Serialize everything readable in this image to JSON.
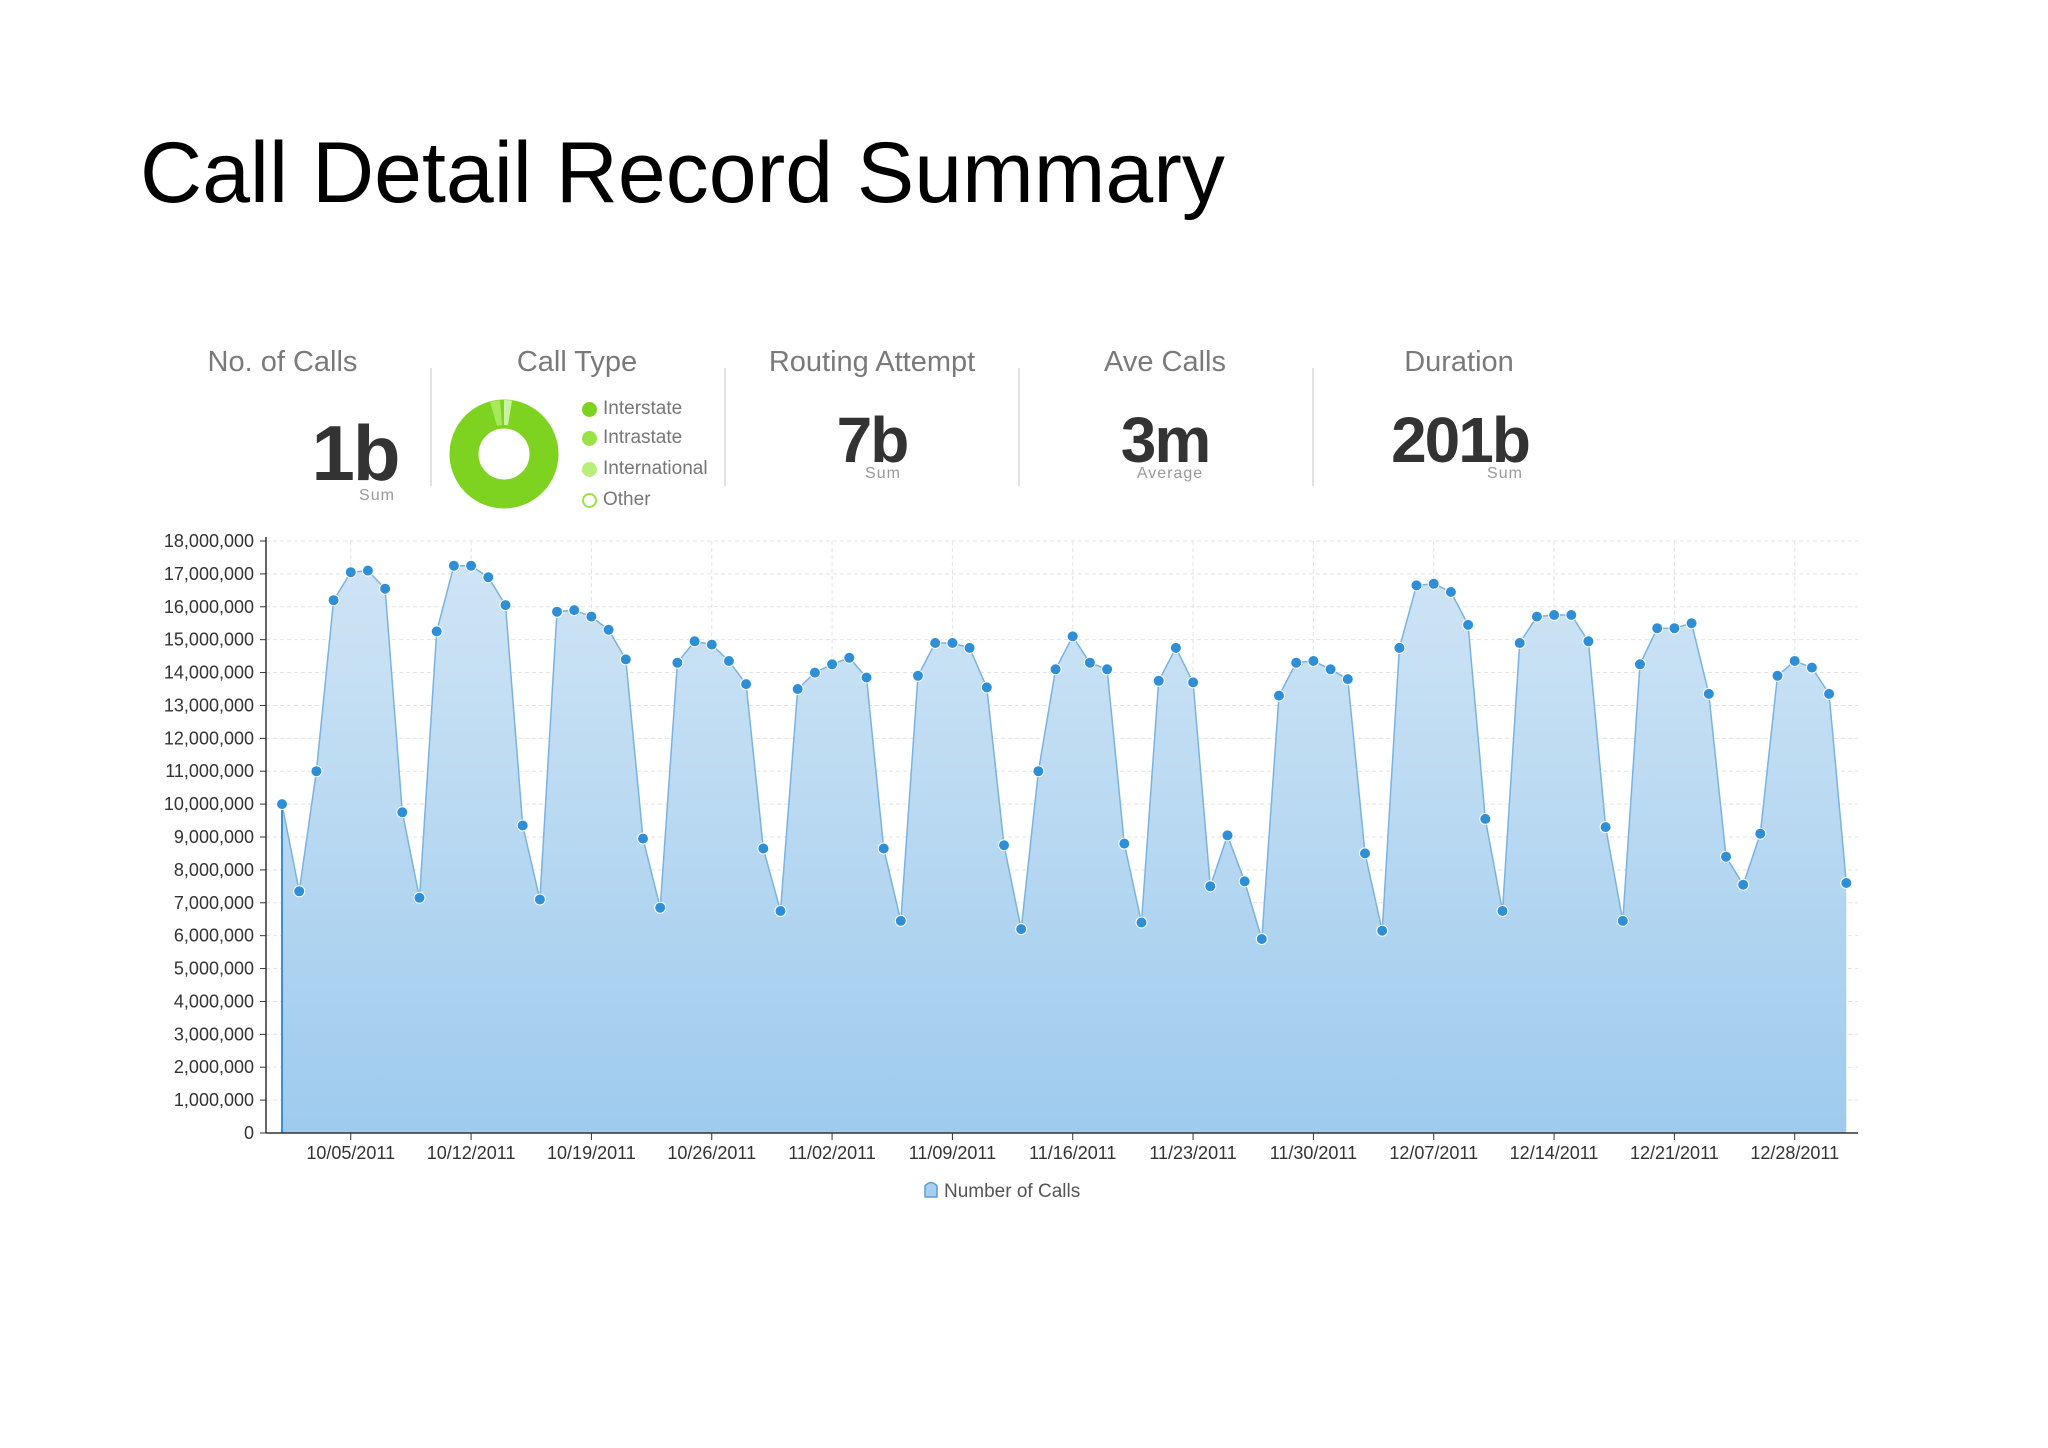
{
  "title": "Call Detail Record Summary",
  "kpis": {
    "calls": {
      "title": "No. of Calls",
      "value": "1b",
      "sub": "Sum"
    },
    "call_type": {
      "title": "Call Type"
    },
    "routing": {
      "title": "Routing Attempt",
      "value": "7b",
      "sub": "Sum"
    },
    "ave": {
      "title": "Ave Calls",
      "value": "3m",
      "sub": "Average"
    },
    "duration": {
      "title": "Duration",
      "value": "201b",
      "sub": "Sum"
    }
  },
  "call_type_legend": [
    {
      "label": "Interstate",
      "color": "#7ed321",
      "filled": true
    },
    {
      "label": "Intrastate",
      "color": "#9be345",
      "filled": true
    },
    {
      "label": "International",
      "color": "#b9ee7a",
      "filled": true
    },
    {
      "label": "Other",
      "color": "#9be345",
      "filled": false
    }
  ],
  "colors": {
    "area_top": "#cfe4f5",
    "area_bottom": "#9ecbee",
    "line": "#7ab3df",
    "point": "#2e8fd6",
    "donut_main": "#7ed321",
    "donut_light": "#b9ee7a"
  },
  "chart_data": {
    "type": "area",
    "x_tick_labels": [
      "10/05/2011",
      "10/12/2011",
      "10/19/2011",
      "10/26/2011",
      "11/02/2011",
      "11/09/2011",
      "11/16/2011",
      "11/23/2011",
      "11/30/2011",
      "12/07/2011",
      "12/14/2011",
      "12/21/2011",
      "12/28/2011"
    ],
    "y_tick_labels": [
      "0",
      "1,000,000",
      "2,000,000",
      "3,000,000",
      "4,000,000",
      "5,000,000",
      "6,000,000",
      "7,000,000",
      "8,000,000",
      "9,000,000",
      "10,000,000",
      "11,000,000",
      "12,000,000",
      "13,000,000",
      "14,000,000",
      "15,000,000",
      "16,000,000",
      "17,000,000",
      "18,000,000"
    ],
    "ylim": [
      0,
      18000000
    ],
    "x_start_date": "10/01/2011",
    "x_end_date": "12/31/2011",
    "grid": true,
    "legend_position": "bottom-center",
    "series": [
      {
        "name": "Number of Calls",
        "values": [
          10000000,
          7350000,
          11000000,
          16200000,
          17050000,
          17100000,
          16550000,
          9750000,
          7150000,
          15250000,
          17250000,
          17250000,
          16900000,
          16050000,
          9350000,
          7100000,
          15850000,
          15900000,
          15700000,
          15300000,
          14400000,
          8950000,
          6850000,
          14300000,
          14950000,
          14850000,
          14350000,
          13650000,
          8650000,
          6750000,
          13500000,
          14000000,
          14250000,
          14450000,
          13850000,
          8650000,
          6450000,
          13900000,
          14900000,
          14900000,
          14750000,
          13550000,
          8750000,
          6200000,
          11000000,
          14100000,
          15100000,
          14300000,
          14100000,
          8800000,
          6400000,
          13750000,
          14750000,
          13700000,
          7500000,
          9050000,
          7650000,
          5900000,
          13300000,
          14300000,
          14350000,
          14100000,
          13800000,
          8500000,
          6150000,
          14750000,
          16650000,
          16700000,
          16450000,
          15450000,
          9550000,
          6750000,
          14900000,
          15700000,
          15750000,
          15750000,
          14950000,
          9300000,
          6450000,
          14250000,
          15350000,
          15350000,
          15500000,
          13350000,
          8400000,
          7550000,
          9100000,
          13900000,
          14350000,
          14150000,
          13350000,
          7600000
        ]
      }
    ]
  }
}
